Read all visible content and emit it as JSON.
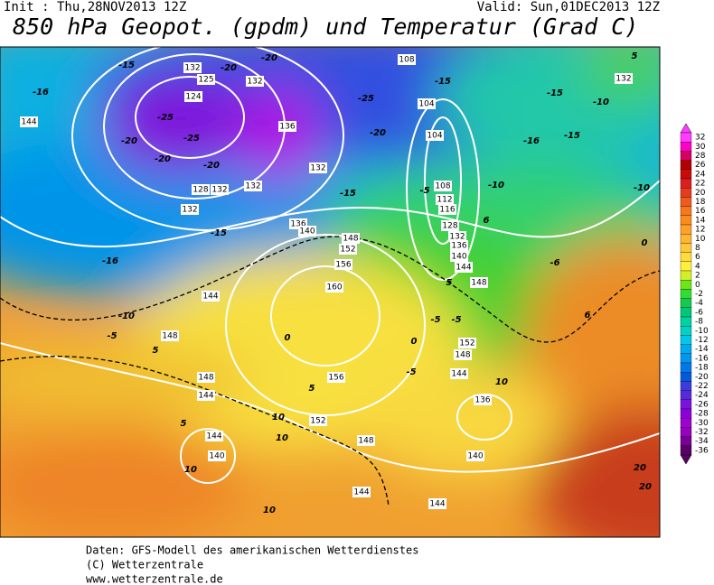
{
  "header": {
    "init": "Init : Thu,28NOV2013 12Z",
    "valid": "Valid: Sun,01DEC2013 12Z",
    "title": "850 hPa Geopot. (gpdm) und Temperatur (Grad C)"
  },
  "map": {
    "geopotential_labels": [
      132,
      125,
      132,
      124,
      136,
      132,
      128,
      132,
      132,
      132,
      136,
      140,
      148,
      152,
      156,
      160,
      144,
      148,
      148,
      144,
      144,
      140,
      152,
      156,
      148,
      144,
      144,
      140,
      136,
      144,
      148,
      152,
      148,
      144,
      140,
      136,
      132,
      128,
      116,
      112,
      108,
      104,
      104,
      108,
      132,
      144
    ],
    "temperature_labels": [
      -15,
      -16,
      -20,
      -20,
      -25,
      -25,
      -20,
      -20,
      -20,
      -25,
      -20,
      -15,
      -15,
      -16,
      -10,
      -5,
      5,
      0,
      5,
      10,
      10,
      10,
      10,
      5,
      -5,
      -10,
      -15,
      -16,
      -10,
      -15,
      -10,
      -15,
      5,
      6,
      -5,
      -5,
      -5,
      0,
      0,
      -6,
      6,
      0,
      20,
      20,
      10,
      5
    ]
  },
  "legend": {
    "values": [
      32,
      30,
      28,
      26,
      24,
      22,
      20,
      18,
      16,
      14,
      12,
      10,
      8,
      6,
      4,
      2,
      0,
      -2,
      -4,
      -6,
      -8,
      -10,
      -12,
      -14,
      -16,
      -18,
      -20,
      -22,
      -24,
      -26,
      -28,
      -30,
      -32,
      -34,
      -36
    ],
    "colors": [
      "#ff3cff",
      "#ff00c8",
      "#d70064",
      "#b40000",
      "#c80a0a",
      "#dc1e1e",
      "#e63c1e",
      "#f05a1e",
      "#f5781e",
      "#fa8c1e",
      "#ffa028",
      "#ffb432",
      "#ffc83c",
      "#ffdc3c",
      "#fff03c",
      "#d2f028",
      "#6ee614",
      "#32dc32",
      "#14c850",
      "#00c878",
      "#00d2a0",
      "#00d2c8",
      "#00c8e6",
      "#00aaf0",
      "#0096f0",
      "#0078e6",
      "#005adc",
      "#3c3cdc",
      "#5a28dc",
      "#7814dc",
      "#8c00dc",
      "#a000d2",
      "#9600be",
      "#780096",
      "#5a0064"
    ]
  },
  "footer": [
    "Daten: GFS-Modell des amerikanischen Wetterdienstes",
    "(C) Wetterzentrale",
    "www.wetterzentrale.de"
  ]
}
